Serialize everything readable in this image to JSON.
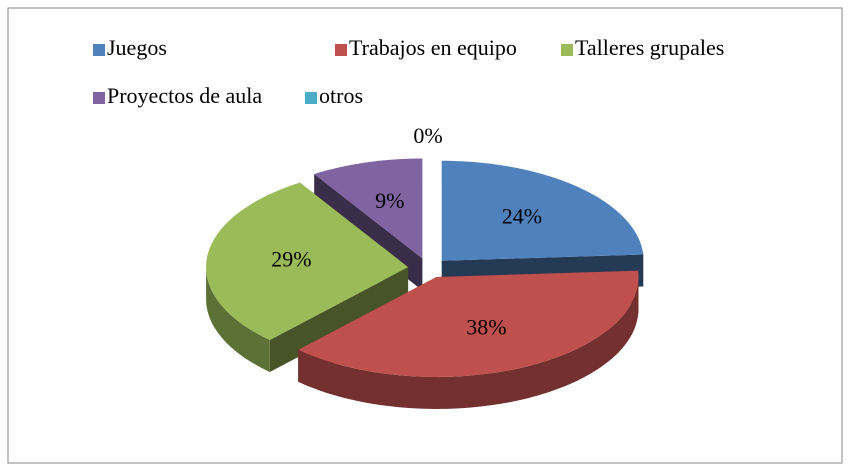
{
  "chart_data": {
    "type": "pie3d",
    "categories": [
      "Juegos",
      "Trabajos en equipo",
      "Talleres grupales",
      "Proyectos de aula",
      "otros"
    ],
    "values": [
      24,
      38,
      29,
      9,
      0
    ],
    "value_labels": [
      "24%",
      "38%",
      "29%",
      "9%",
      "0%"
    ],
    "colors": [
      "#4f81bd",
      "#c0504d",
      "#9bbb59",
      "#8064a2",
      "#4bacc6"
    ],
    "legend": "top"
  }
}
